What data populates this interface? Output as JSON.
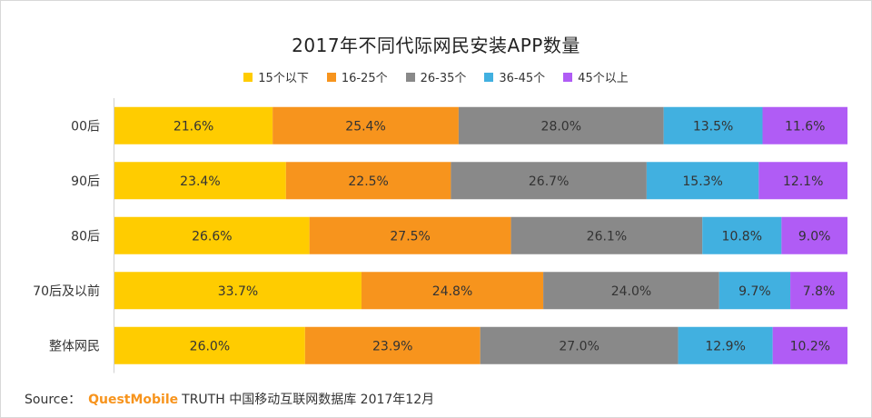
{
  "chart_data": {
    "type": "bar",
    "orientation": "horizontal-stacked-100",
    "title": "2017年不同代际网民安装APP数量",
    "categories": [
      "00后",
      "90后",
      "80后",
      "70后及以前",
      "整体网民"
    ],
    "series": [
      {
        "name": "15个以下",
        "color": "#ffcc00",
        "values": [
          21.6,
          23.4,
          26.6,
          33.7,
          26.0
        ],
        "labels": [
          "21.6%",
          "23.4%",
          "26.6%",
          "33.7%",
          "26.0%"
        ]
      },
      {
        "name": "16-25个",
        "color": "#f7941d",
        "values": [
          25.4,
          22.5,
          27.5,
          24.8,
          23.9
        ],
        "labels": [
          "25.4%",
          "22.5%",
          "27.5%",
          "24.8%",
          "23.9%"
        ]
      },
      {
        "name": "26-35个",
        "color": "#898989",
        "values": [
          28.0,
          26.7,
          26.1,
          24.0,
          27.0
        ],
        "labels": [
          "28.0%",
          "26.7%",
          "26.1%",
          "24.0%",
          "27.0%"
        ]
      },
      {
        "name": "36-45个",
        "color": "#41b0e0",
        "values": [
          13.5,
          15.3,
          10.8,
          9.7,
          12.9
        ],
        "labels": [
          "13.5%",
          "15.3%",
          "10.8%",
          "9.7%",
          "12.9%"
        ]
      },
      {
        "name": "45个以上",
        "color": "#b05cf5",
        "values": [
          11.6,
          12.1,
          9.0,
          7.8,
          10.2
        ],
        "labels": [
          "11.6%",
          "12.1%",
          "9.0%",
          "7.8%",
          "10.2%"
        ]
      }
    ],
    "xlim": [
      0,
      100
    ],
    "legend_position": "top-center"
  },
  "source": {
    "prefix": "Source：",
    "brand": "QuestMobile",
    "text": "TRUTH 中国移动互联网数据库 2017年12月"
  }
}
